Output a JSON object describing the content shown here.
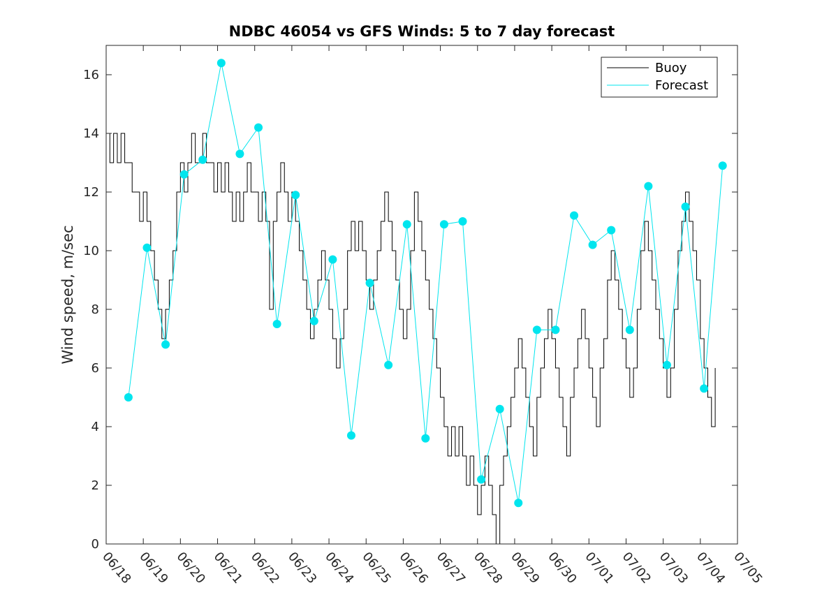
{
  "chart_data": {
    "type": "line",
    "title": "NDBC 46054 vs GFS Winds: 5 to 7 day forecast",
    "xlabel": "",
    "ylabel": "Wind speed, m/sec",
    "x_tick_labels": [
      "06/18",
      "06/19",
      "06/20",
      "06/21",
      "06/22",
      "06/23",
      "06/24",
      "06/25",
      "06/26",
      "06/27",
      "06/28",
      "06/29",
      "06/30",
      "07/01",
      "07/02",
      "07/03",
      "07/04",
      "07/05"
    ],
    "y_ticks": [
      0,
      2,
      4,
      6,
      8,
      10,
      12,
      14,
      16
    ],
    "xlim_days": [
      0,
      17
    ],
    "ylim": [
      0,
      17
    ],
    "grid": false,
    "legend": {
      "position": "top-right",
      "entries": [
        "Buoy",
        "Forecast"
      ]
    },
    "colors": {
      "buoy": "#000000",
      "forecast": "#00e5ee"
    },
    "series": [
      {
        "name": "Buoy",
        "x": [
          0,
          0.1,
          0.2,
          0.3,
          0.4,
          0.5,
          0.6,
          0.7,
          0.8,
          0.9,
          1.0,
          1.1,
          1.2,
          1.3,
          1.4,
          1.5,
          1.6,
          1.7,
          1.8,
          1.9,
          2.0,
          2.1,
          2.2,
          2.3,
          2.4,
          2.5,
          2.6,
          2.7,
          2.8,
          2.9,
          3.0,
          3.1,
          3.2,
          3.3,
          3.4,
          3.5,
          3.6,
          3.7,
          3.8,
          3.9,
          4.0,
          4.1,
          4.2,
          4.3,
          4.4,
          4.5,
          4.6,
          4.7,
          4.8,
          4.9,
          5.0,
          5.1,
          5.2,
          5.3,
          5.4,
          5.5,
          5.6,
          5.7,
          5.8,
          5.9,
          6.0,
          6.1,
          6.2,
          6.3,
          6.4,
          6.5,
          6.6,
          6.7,
          6.8,
          6.9,
          7.0,
          7.1,
          7.2,
          7.3,
          7.4,
          7.5,
          7.6,
          7.7,
          7.8,
          7.9,
          8.0,
          8.1,
          8.2,
          8.3,
          8.4,
          8.5,
          8.6,
          8.7,
          8.8,
          8.9,
          9.0,
          9.1,
          9.2,
          9.3,
          9.4,
          9.5,
          9.6,
          9.7,
          9.8,
          9.9,
          10.0,
          10.1,
          10.2,
          10.3,
          10.4,
          10.5,
          10.6,
          10.7,
          10.8,
          10.9,
          11.0,
          11.1,
          11.2,
          11.3,
          11.4,
          11.5,
          11.6,
          11.7,
          11.8,
          11.9,
          12.0,
          12.1,
          12.2,
          12.3,
          12.4,
          12.5,
          12.6,
          12.7,
          12.8,
          12.9,
          13.0,
          13.1,
          13.2,
          13.3,
          13.4,
          13.5,
          13.6,
          13.7,
          13.8,
          13.9,
          14.0,
          14.1,
          14.2,
          14.3,
          14.4,
          14.5,
          14.6,
          14.7,
          14.8,
          14.9,
          15.0,
          15.1,
          15.2,
          15.3,
          15.4,
          15.5,
          15.6,
          15.7,
          15.8,
          15.9,
          16.0,
          16.1,
          16.2,
          16.3,
          16.4
        ],
        "y": [
          14,
          13,
          14,
          13,
          14,
          13,
          13,
          12,
          12,
          11,
          12,
          11,
          10,
          9,
          8,
          7,
          8,
          9,
          10,
          12,
          13,
          12,
          13,
          14,
          13,
          13,
          14,
          13,
          13,
          12,
          13,
          12,
          13,
          12,
          11,
          12,
          11,
          12,
          13,
          12,
          12,
          11,
          12,
          11,
          8,
          11,
          12,
          13,
          12,
          11,
          12,
          11,
          10,
          9,
          8,
          7,
          8,
          9,
          10,
          9,
          8,
          7,
          6,
          7,
          8,
          10,
          11,
          10,
          11,
          10,
          9,
          8,
          9,
          10,
          11,
          12,
          11,
          10,
          9,
          8,
          7,
          8,
          10,
          12,
          11,
          10,
          9,
          8,
          7,
          6,
          5,
          4,
          3,
          4,
          3,
          4,
          3,
          2,
          3,
          2,
          1,
          2,
          3,
          2,
          1,
          0,
          2,
          3,
          4,
          5,
          6,
          7,
          6,
          5,
          4,
          3,
          5,
          6,
          7,
          8,
          7,
          6,
          5,
          4,
          3,
          5,
          6,
          7,
          8,
          7,
          6,
          5,
          4,
          6,
          7,
          9,
          10,
          9,
          8,
          7,
          6,
          5,
          6,
          8,
          10,
          11,
          10,
          9,
          8,
          7,
          6,
          5,
          6,
          8,
          10,
          11,
          12,
          11,
          10,
          9,
          7,
          6,
          5,
          4,
          6
        ]
      },
      {
        "name": "Forecast",
        "x": [
          0.6,
          1.1,
          1.6,
          2.1,
          2.6,
          3.1,
          3.6,
          4.1,
          4.6,
          5.1,
          5.6,
          6.1,
          6.6,
          7.1,
          7.6,
          8.1,
          8.6,
          9.1,
          9.6,
          10.1,
          10.6,
          11.1,
          11.6,
          12.1,
          12.6,
          13.1,
          13.6,
          14.1,
          14.6,
          15.1,
          15.6,
          16.1,
          16.6
        ],
        "y": [
          5.0,
          10.1,
          6.8,
          12.6,
          13.1,
          16.4,
          13.3,
          14.2,
          7.5,
          11.9,
          7.6,
          9.7,
          3.7,
          8.9,
          6.1,
          10.9,
          3.6,
          10.9,
          11.0,
          2.2,
          4.6,
          1.4,
          7.3,
          7.3,
          11.2,
          10.2,
          10.7,
          7.3,
          12.2,
          6.1,
          11.5,
          5.3,
          12.9
        ]
      }
    ]
  }
}
